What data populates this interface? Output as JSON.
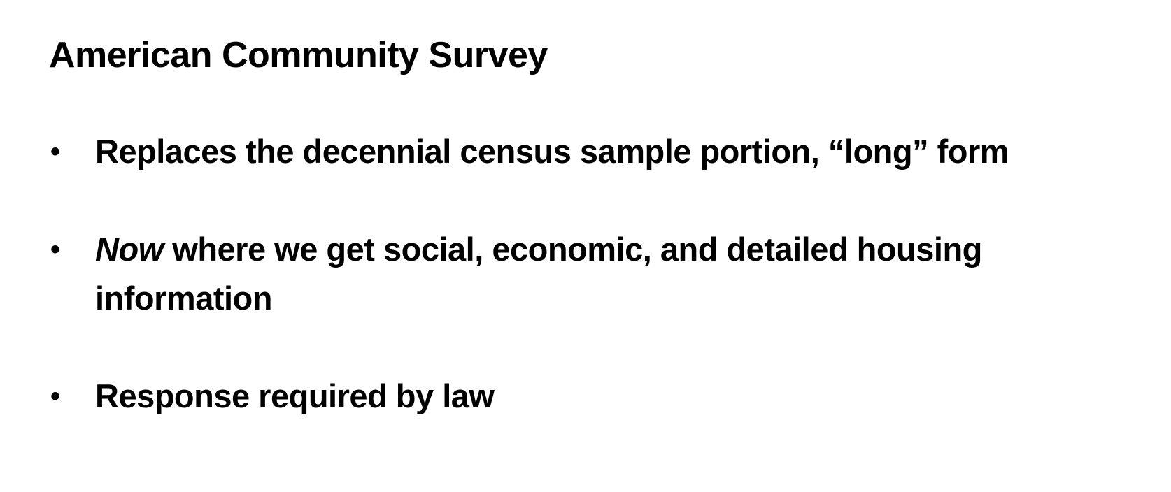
{
  "slide": {
    "title": "American Community Survey",
    "bullet_glyph": "•",
    "bullets": [
      {
        "emphasis": "",
        "text": "Replaces the decennial census sample portion, “long” form"
      },
      {
        "emphasis": "Now",
        "text": " where we get social, economic, and detailed housing information"
      },
      {
        "emphasis": "",
        "text": "Response required by law"
      }
    ]
  }
}
